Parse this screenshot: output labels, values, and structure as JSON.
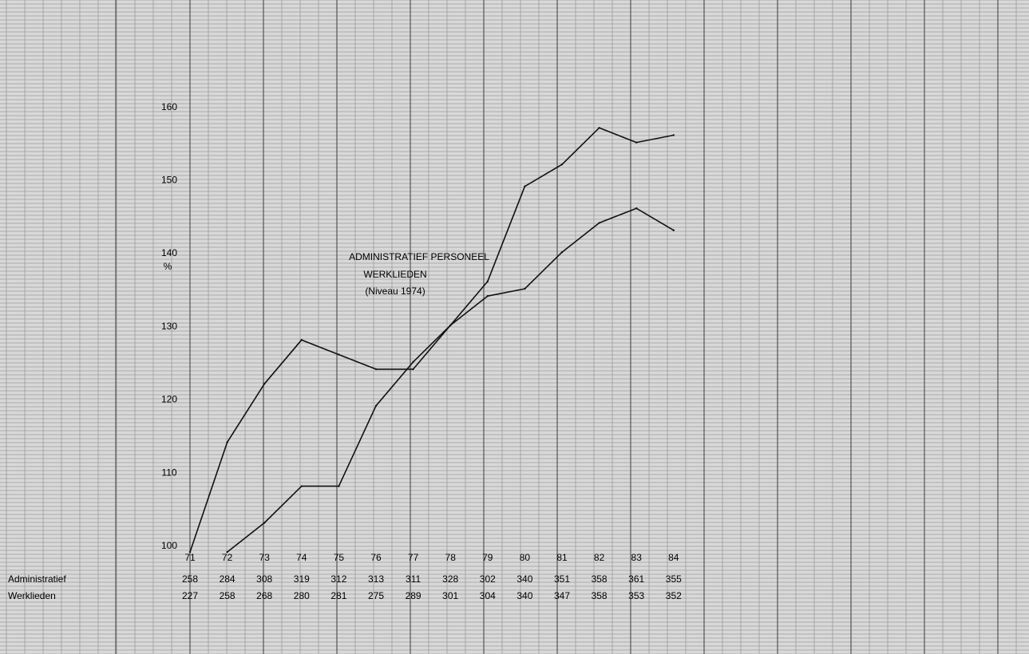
{
  "chart_data": {
    "type": "line",
    "title": [
      "ADMINISTRATIEF    PERSONEEL",
      "WERKLIEDEN",
      "(Niveau 1974)"
    ],
    "ylabel": "%",
    "ylim": [
      95,
      165
    ],
    "y_ticks": [
      100,
      110,
      120,
      130,
      140,
      150,
      160
    ],
    "categories": [
      "71",
      "72",
      "73",
      "74",
      "75",
      "76",
      "77",
      "78",
      "79",
      "80",
      "81",
      "82",
      "83",
      "84"
    ],
    "series": [
      {
        "name": "Administratief",
        "values": [
          99,
          114,
          122,
          128,
          126,
          124,
          124,
          130,
          136,
          149,
          152,
          157,
          155,
          156
        ]
      },
      {
        "name": "Werklieden",
        "values": [
          null,
          99,
          103,
          108,
          108,
          119,
          125,
          130,
          134,
          135,
          140,
          144,
          146,
          143
        ]
      }
    ],
    "table_rows": [
      {
        "label": "Administratief",
        "values": [
          "258",
          "284",
          "308",
          "319",
          "312",
          "313",
          "311",
          "328",
          "302",
          "340",
          "351",
          "358",
          "361",
          "355"
        ]
      },
      {
        "label": "Werklieden",
        "values": [
          "227",
          "258",
          "268",
          "280",
          "281",
          "275",
          "289",
          "301",
          "304",
          "340",
          "347",
          "358",
          "353",
          "352"
        ]
      }
    ],
    "grid": true,
    "legend": "none"
  },
  "colors": {
    "background": "#d8d8d8",
    "grid_fine": "#9c9c9c",
    "grid_major": "#555555",
    "line": "#111111"
  }
}
